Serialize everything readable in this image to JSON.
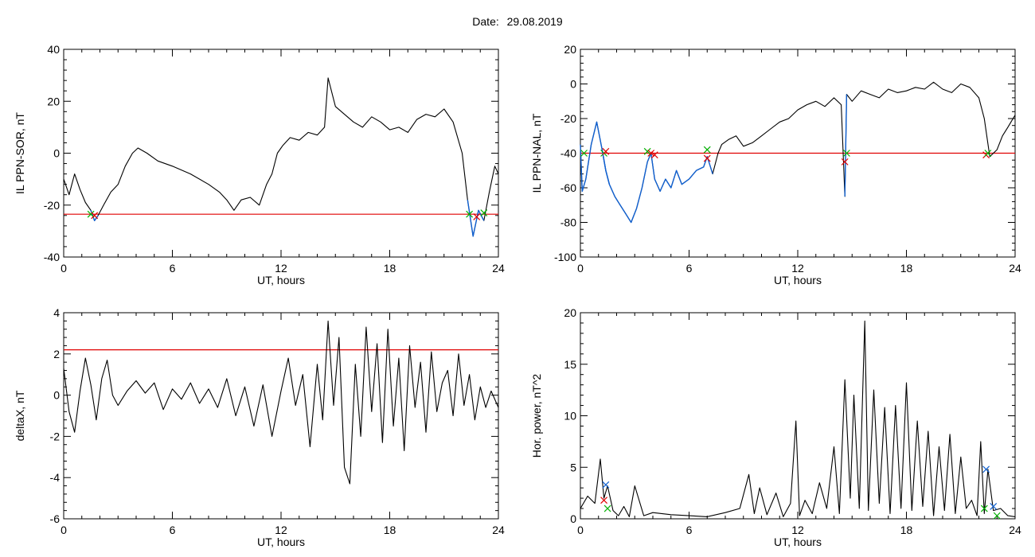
{
  "header": {
    "date_label": "Date:",
    "date_value": "29.08.2019"
  },
  "colors": {
    "axis": "#000000",
    "signal": "#000000",
    "threshold": "#e00000",
    "highlight": "#1060d0",
    "start_marker": "#00b000",
    "end_marker": "#e00000",
    "peak_marker": "#1060d0"
  },
  "chart_data": [
    {
      "type": "line",
      "xlabel": "UT, hours",
      "ylabel": "IL PPN-SOR, nT",
      "xlim": [
        0,
        24
      ],
      "ylim": [
        -40,
        40
      ],
      "xticks": [
        0,
        6,
        12,
        18,
        24
      ],
      "yticks": [
        -40,
        -20,
        0,
        20,
        40
      ],
      "threshold": -23.5,
      "series": [
        {
          "x": [
            0,
            0.3,
            0.6,
            0.9,
            1.2,
            1.5,
            1.7,
            1.9,
            2.2,
            2.6,
            3.0,
            3.4,
            3.8,
            4.1,
            4.6,
            5.2,
            6.0,
            7.0,
            8.0,
            8.6,
            9.0,
            9.4,
            9.8,
            10.3,
            10.8,
            11.2,
            11.5,
            11.8,
            12.1,
            12.5,
            13.0,
            13.5,
            14.0,
            14.4,
            14.6,
            15.0,
            15.5,
            16.0,
            16.5,
            17.0,
            17.5,
            18.0,
            18.5,
            19.0,
            19.5,
            20.0,
            20.5,
            21.0,
            21.5,
            22.0,
            22.3,
            22.6,
            22.9,
            23.2,
            23.5,
            23.8,
            24.0
          ],
          "y": [
            -10,
            -16,
            -8,
            -14,
            -19,
            -22,
            -26,
            -24,
            -20,
            -15,
            -12,
            -5,
            0,
            2,
            0,
            -3,
            -5,
            -8,
            -12,
            -15,
            -18,
            -22,
            -18,
            -17,
            -20,
            -12,
            -8,
            0,
            3,
            6,
            5,
            8,
            7,
            10,
            29,
            18,
            15,
            12,
            10,
            14,
            12,
            9,
            10,
            8,
            13,
            15,
            14,
            17,
            12,
            0,
            -18,
            -32,
            -22,
            -26,
            -15,
            -5,
            -8
          ]
        }
      ],
      "highlight_ranges": [
        [
          1.5,
          1.9
        ],
        [
          22.3,
          23.4
        ]
      ],
      "markers": [
        {
          "x": 1.5,
          "y": -23.5,
          "kind": "start"
        },
        {
          "x": 1.7,
          "y": -24,
          "kind": "end"
        },
        {
          "x": 22.4,
          "y": -23.5,
          "kind": "start"
        },
        {
          "x": 22.8,
          "y": -24.5,
          "kind": "end"
        },
        {
          "x": 23.2,
          "y": -23,
          "kind": "start"
        }
      ]
    },
    {
      "type": "line",
      "xlabel": "UT, hours",
      "ylabel": "IL PPN-NAL, nT",
      "xlim": [
        0,
        24
      ],
      "ylim": [
        -100,
        20
      ],
      "xticks": [
        0,
        6,
        12,
        18,
        24
      ],
      "yticks": [
        -100,
        -80,
        -60,
        -40,
        -20,
        0,
        20
      ],
      "threshold": -40,
      "series": [
        {
          "x": [
            0,
            0.1,
            0.3,
            0.6,
            0.9,
            1.2,
            1.4,
            1.6,
            1.9,
            2.2,
            2.5,
            2.8,
            3.1,
            3.4,
            3.7,
            3.9,
            4.1,
            4.4,
            4.7,
            5.0,
            5.3,
            5.6,
            6.0,
            6.4,
            6.8,
            7.0,
            7.3,
            7.6,
            7.8,
            8.2,
            8.6,
            9.0,
            9.5,
            10.0,
            10.5,
            11.0,
            11.5,
            12.0,
            12.5,
            13.0,
            13.5,
            14.0,
            14.4,
            14.6,
            14.7,
            15.0,
            15.5,
            16.0,
            16.5,
            17.0,
            17.5,
            18.0,
            18.5,
            19.0,
            19.5,
            20.0,
            20.5,
            21.0,
            21.5,
            22.0,
            22.3,
            22.6,
            23.0,
            23.3,
            23.6,
            24.0
          ],
          "y": [
            -35,
            -62,
            -55,
            -35,
            -22,
            -38,
            -50,
            -58,
            -65,
            -70,
            -75,
            -80,
            -72,
            -60,
            -45,
            -40,
            -55,
            -62,
            -55,
            -60,
            -50,
            -58,
            -55,
            -50,
            -48,
            -42,
            -52,
            -40,
            -35,
            -32,
            -30,
            -36,
            -34,
            -30,
            -26,
            -22,
            -20,
            -15,
            -12,
            -10,
            -13,
            -8,
            -12,
            -65,
            -6,
            -10,
            -4,
            -6,
            -8,
            -3,
            -5,
            -4,
            -2,
            -3,
            1,
            -3,
            -5,
            0,
            -2,
            -8,
            -20,
            -42,
            -38,
            -30,
            -25,
            -18
          ]
        }
      ],
      "highlight_ranges": [
        [
          0,
          1.6
        ],
        [
          1.2,
          7.4
        ],
        [
          14.55,
          14.75
        ]
      ],
      "markers": [
        {
          "x": 0.2,
          "y": -40,
          "kind": "start"
        },
        {
          "x": 1.3,
          "y": -40,
          "kind": "start"
        },
        {
          "x": 1.4,
          "y": -39,
          "kind": "end"
        },
        {
          "x": 3.7,
          "y": -39,
          "kind": "start"
        },
        {
          "x": 3.9,
          "y": -40,
          "kind": "end"
        },
        {
          "x": 4.1,
          "y": -41,
          "kind": "end"
        },
        {
          "x": 7.0,
          "y": -38,
          "kind": "start"
        },
        {
          "x": 7.0,
          "y": -43,
          "kind": "end"
        },
        {
          "x": 14.6,
          "y": -45,
          "kind": "end"
        },
        {
          "x": 14.7,
          "y": -40,
          "kind": "start"
        },
        {
          "x": 22.4,
          "y": -41,
          "kind": "end"
        },
        {
          "x": 22.5,
          "y": -40,
          "kind": "start"
        }
      ]
    },
    {
      "type": "line",
      "xlabel": "UT, hours",
      "ylabel": "deltaX, nT",
      "xlim": [
        0,
        24
      ],
      "ylim": [
        -6,
        4
      ],
      "xticks": [
        0,
        6,
        12,
        18,
        24
      ],
      "yticks": [
        -6,
        -4,
        -2,
        0,
        2,
        4
      ],
      "threshold": 2.2,
      "series": [
        {
          "x": [
            0,
            0.3,
            0.6,
            0.9,
            1.2,
            1.5,
            1.8,
            2.1,
            2.4,
            2.7,
            3.0,
            3.5,
            4.0,
            4.5,
            5.0,
            5.5,
            6.0,
            6.5,
            7.0,
            7.5,
            8.0,
            8.5,
            9.0,
            9.5,
            10.0,
            10.5,
            11.0,
            11.5,
            12.0,
            12.4,
            12.8,
            13.2,
            13.6,
            14.0,
            14.3,
            14.6,
            14.9,
            15.2,
            15.5,
            15.8,
            16.1,
            16.4,
            16.7,
            17.0,
            17.3,
            17.6,
            17.9,
            18.2,
            18.5,
            18.8,
            19.1,
            19.4,
            19.7,
            20.0,
            20.3,
            20.6,
            20.9,
            21.2,
            21.5,
            21.8,
            22.1,
            22.4,
            22.7,
            23.0,
            23.3,
            23.6,
            24.0
          ],
          "y": [
            1.3,
            -0.8,
            -1.8,
            0.2,
            1.8,
            0.5,
            -1.2,
            0.8,
            1.7,
            0,
            -0.5,
            0.2,
            0.7,
            0.1,
            0.6,
            -0.7,
            0.3,
            -0.2,
            0.6,
            -0.4,
            0.3,
            -0.6,
            0.8,
            -1.0,
            0.4,
            -1.5,
            0.5,
            -2.0,
            0.2,
            1.8,
            -0.5,
            1.0,
            -2.5,
            1.5,
            -1.2,
            3.6,
            -0.5,
            2.8,
            -3.5,
            -4.3,
            1.5,
            -2.0,
            3.3,
            -0.8,
            2.5,
            -2.3,
            3.2,
            -1.5,
            1.8,
            -2.7,
            2.4,
            -0.6,
            1.6,
            -1.8,
            2.1,
            -0.8,
            0.6,
            1.2,
            -1.0,
            2.0,
            -0.5,
            1.0,
            -1.2,
            0.4,
            -0.6,
            0.2,
            -0.6
          ]
        }
      ],
      "highlight_ranges": [],
      "markers": []
    },
    {
      "type": "line",
      "xlabel": "UT, hours",
      "ylabel": "Hor. power, nT^2",
      "xlim": [
        0,
        24
      ],
      "ylim": [
        0,
        20
      ],
      "xticks": [
        0,
        6,
        12,
        18,
        24
      ],
      "yticks": [
        0,
        5,
        10,
        15,
        20
      ],
      "threshold": null,
      "series": [
        {
          "x": [
            0,
            0.4,
            0.8,
            1.1,
            1.3,
            1.5,
            1.8,
            2.1,
            2.4,
            2.7,
            3.0,
            3.5,
            4.0,
            5.0,
            6.0,
            7.0,
            8.0,
            8.8,
            9.3,
            9.6,
            9.9,
            10.3,
            10.8,
            11.2,
            11.6,
            11.9,
            12.1,
            12.4,
            12.8,
            13.2,
            13.6,
            14.0,
            14.3,
            14.6,
            14.9,
            15.1,
            15.4,
            15.7,
            15.9,
            16.2,
            16.5,
            16.8,
            17.1,
            17.4,
            17.7,
            18.0,
            18.3,
            18.6,
            18.9,
            19.2,
            19.5,
            19.8,
            20.1,
            20.4,
            20.7,
            21.0,
            21.3,
            21.6,
            21.9,
            22.1,
            22.3,
            22.5,
            22.8,
            23.2,
            23.6,
            24.0
          ],
          "y": [
            1.0,
            2.2,
            1.5,
            5.8,
            2.0,
            3.2,
            0.8,
            0.3,
            1.2,
            0.2,
            3.2,
            0.3,
            0.6,
            0.4,
            0.3,
            0.2,
            0.6,
            1.0,
            4.3,
            0.5,
            3.0,
            0.4,
            2.5,
            0.2,
            1.5,
            9.5,
            0.3,
            1.8,
            0.5,
            3.5,
            1.0,
            7.0,
            0.5,
            13.5,
            2.0,
            12.0,
            1.0,
            19.2,
            0.8,
            12.5,
            1.5,
            10.8,
            0.5,
            11.0,
            1.0,
            13.2,
            0.8,
            9.5,
            1.2,
            8.5,
            0.3,
            7.0,
            0.8,
            8.2,
            0.5,
            6.0,
            1.0,
            1.8,
            0.3,
            7.5,
            0.5,
            4.8,
            0.8,
            1.0,
            0.3,
            0.2
          ]
        }
      ],
      "highlight_ranges": [],
      "markers": [
        {
          "x": 1.3,
          "y": 1.8,
          "kind": "end"
        },
        {
          "x": 1.4,
          "y": 3.3,
          "kind": "peak"
        },
        {
          "x": 1.5,
          "y": 1.0,
          "kind": "start"
        },
        {
          "x": 22.4,
          "y": 4.8,
          "kind": "peak"
        },
        {
          "x": 22.3,
          "y": 1.0,
          "kind": "start"
        },
        {
          "x": 22.8,
          "y": 1.2,
          "kind": "peak"
        },
        {
          "x": 23.0,
          "y": 0.3,
          "kind": "start"
        }
      ]
    }
  ]
}
